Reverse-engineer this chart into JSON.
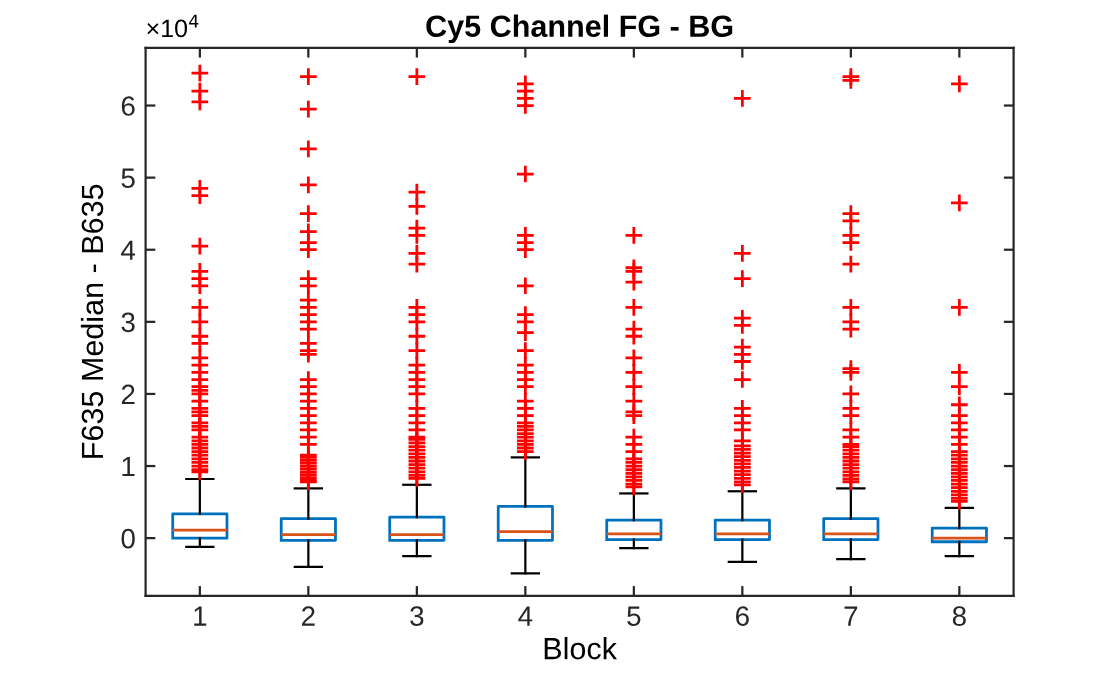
{
  "chart_data": {
    "type": "box",
    "title": "Cy5 Channel FG - BG",
    "xlabel": "Block",
    "ylabel": "F635 Median - B635",
    "annotations": [
      "×10$^{4}$"
    ],
    "categories": [
      "1",
      "2",
      "3",
      "4",
      "5",
      "6",
      "7",
      "8"
    ],
    "ylim": [
      -0.8,
      6.8
    ],
    "yticks": [
      0,
      1,
      2,
      3,
      4,
      5,
      6
    ],
    "grid": false,
    "color": "#0072bd",
    "marker": "cross",
    "boxes": [
      {
        "low": -0.12,
        "q1": 0,
        "median": 0.11,
        "q3": 0.335,
        "high": 0.82,
        "outliers": [
          0.92,
          0.95,
          1.0,
          1.05,
          1.1,
          1.15,
          1.2,
          1.25,
          1.3,
          1.35,
          1.4,
          1.5,
          1.55,
          1.6,
          1.7,
          1.75,
          1.8,
          1.9,
          2.0,
          2.05,
          2.1,
          2.2,
          2.3,
          2.4,
          2.5,
          2.7,
          2.8,
          3.0,
          3.2,
          3.5,
          3.6,
          3.7,
          4.05,
          4.75,
          4.85,
          6.05,
          6.2,
          6.45
        ]
      },
      {
        "low": -0.4,
        "q1": -0.03,
        "median": 0.05,
        "q3": 0.27,
        "high": 0.69,
        "outliers": [
          0.78,
          0.8,
          0.84,
          0.88,
          0.92,
          0.96,
          1.0,
          1.04,
          1.08,
          1.12,
          1.15,
          1.3,
          1.4,
          1.5,
          1.6,
          1.7,
          1.8,
          1.9,
          2.0,
          2.1,
          2.2,
          2.55,
          2.6,
          2.7,
          2.9,
          3.0,
          3.1,
          3.2,
          3.3,
          3.5,
          3.6,
          4.0,
          4.1,
          4.25,
          4.5,
          4.9,
          5.4,
          5.95,
          6.4
        ]
      },
      {
        "low": -0.25,
        "q1": -0.03,
        "median": 0.05,
        "q3": 0.29,
        "high": 0.74,
        "outliers": [
          0.83,
          0.87,
          0.92,
          0.97,
          1.02,
          1.07,
          1.12,
          1.17,
          1.22,
          1.27,
          1.32,
          1.37,
          1.4,
          1.5,
          1.6,
          1.7,
          1.8,
          2.0,
          2.1,
          2.2,
          2.3,
          2.4,
          2.6,
          2.8,
          3.0,
          3.1,
          3.2,
          3.8,
          3.95,
          4.2,
          4.3,
          4.6,
          4.8,
          6.4
        ]
      },
      {
        "low": -0.49,
        "q1": -0.03,
        "median": 0.09,
        "q3": 0.44,
        "high": 1.12,
        "outliers": [
          1.2,
          1.25,
          1.3,
          1.35,
          1.4,
          1.45,
          1.5,
          1.55,
          1.6,
          1.7,
          1.8,
          1.9,
          2.1,
          2.2,
          2.3,
          2.4,
          2.6,
          2.85,
          3.0,
          3.1,
          3.5,
          4.0,
          4.1,
          4.2,
          5.05,
          6.0,
          6.1,
          6.2,
          6.3
        ]
      },
      {
        "low": -0.14,
        "q1": -0.02,
        "median": 0.06,
        "q3": 0.25,
        "high": 0.62,
        "outliers": [
          0.71,
          0.75,
          0.8,
          0.85,
          0.9,
          0.95,
          1.0,
          1.05,
          1.1,
          1.2,
          1.3,
          1.4,
          1.7,
          1.75,
          1.9,
          2.1,
          2.3,
          2.5,
          2.8,
          2.9,
          3.2,
          3.55,
          3.7,
          3.75,
          4.2
        ]
      },
      {
        "low": -0.33,
        "q1": -0.02,
        "median": 0.06,
        "q3": 0.25,
        "high": 0.65,
        "outliers": [
          0.74,
          0.78,
          0.83,
          0.88,
          0.93,
          0.98,
          1.03,
          1.08,
          1.13,
          1.18,
          1.23,
          1.28,
          1.35,
          1.5,
          1.6,
          1.7,
          1.8,
          2.2,
          2.45,
          2.55,
          2.65,
          2.95,
          3.05,
          3.6,
          3.95,
          6.1
        ]
      },
      {
        "low": -0.29,
        "q1": -0.02,
        "median": 0.06,
        "q3": 0.27,
        "high": 0.69,
        "outliers": [
          0.78,
          0.82,
          0.87,
          0.92,
          0.97,
          1.02,
          1.07,
          1.12,
          1.17,
          1.22,
          1.27,
          1.3,
          1.4,
          1.5,
          1.7,
          1.8,
          2.0,
          2.3,
          2.35,
          2.9,
          3.0,
          3.2,
          3.8,
          4.1,
          4.2,
          4.4,
          4.5,
          6.35,
          6.4
        ]
      },
      {
        "low": -0.25,
        "q1": -0.05,
        "median": 0.0,
        "q3": 0.14,
        "high": 0.42,
        "outliers": [
          0.51,
          0.55,
          0.6,
          0.65,
          0.7,
          0.75,
          0.8,
          0.85,
          0.9,
          0.95,
          1.0,
          1.05,
          1.1,
          1.15,
          1.2,
          1.3,
          1.4,
          1.5,
          1.6,
          1.7,
          1.85,
          2.1,
          2.3,
          3.2,
          4.65,
          6.3
        ]
      }
    ]
  }
}
